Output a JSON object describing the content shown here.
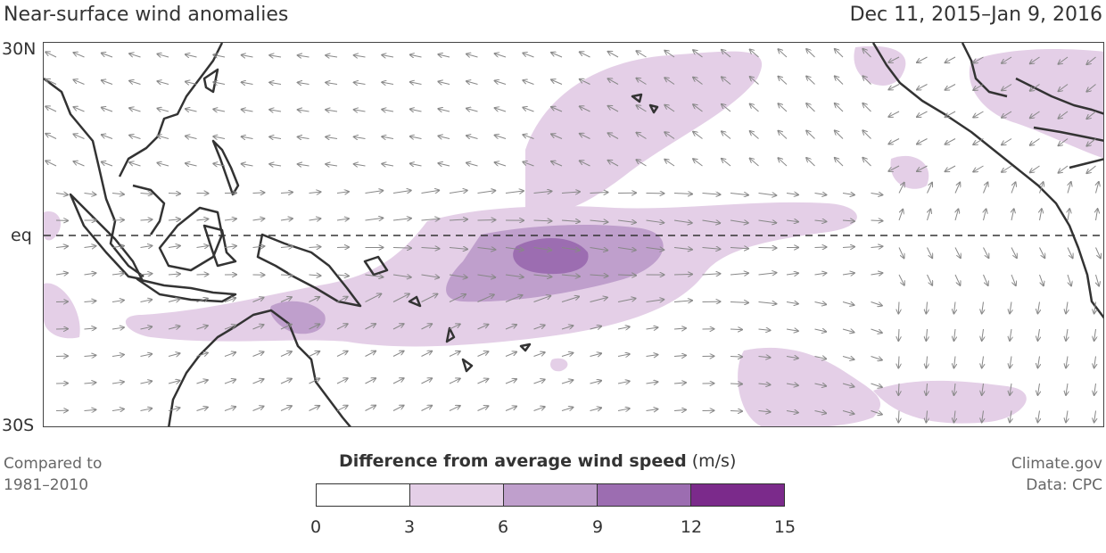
{
  "header": {
    "title": "Near-surface wind anomalies",
    "date_range": "Dec 11, 2015–Jan 9, 2016"
  },
  "map": {
    "lat_labels": {
      "top": "30N",
      "equator": "eq",
      "bottom": "30S"
    },
    "lat_range": [
      -30,
      30
    ],
    "equator_line": "dashed"
  },
  "legend": {
    "title_bold": "Difference from average wind speed",
    "title_unit": " (m/s)",
    "ticks": [
      "0",
      "3",
      "6",
      "9",
      "12",
      "15"
    ],
    "colors": [
      "#ffffff",
      "#e4cfe7",
      "#bf9fcc",
      "#9c6db1",
      "#7b2a8b"
    ]
  },
  "footer": {
    "compared_line1": "Compared to",
    "compared_line2": "1981–2010",
    "source_line1": "Climate.gov",
    "source_line2": "Data: CPC"
  }
}
